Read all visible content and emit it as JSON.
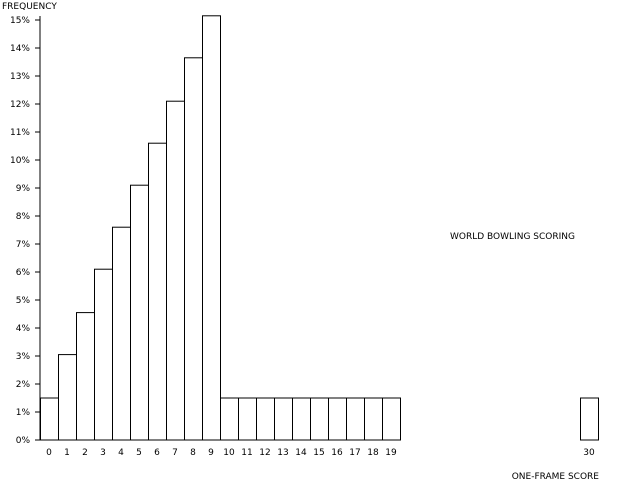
{
  "chart_data": {
    "type": "bar",
    "ylabel": "FREQUENCY",
    "xlabel": "ONE-FRAME SCORE",
    "annotation": "WORLD BOWLING SCORING",
    "ylim": [
      0,
      15
    ],
    "y_ticks": [
      "0%",
      "1%",
      "2%",
      "3%",
      "4%",
      "5%",
      "6%",
      "7%",
      "8%",
      "9%",
      "10%",
      "11%",
      "12%",
      "13%",
      "14%",
      "15%"
    ],
    "x_ticks": [
      "0",
      "1",
      "2",
      "3",
      "4",
      "5",
      "6",
      "7",
      "8",
      "9",
      "10",
      "11",
      "12",
      "13",
      "14",
      "15",
      "16",
      "17",
      "18",
      "19",
      "30"
    ],
    "y_unit": "%",
    "grid": false,
    "categories": [
      0,
      1,
      2,
      3,
      4,
      5,
      6,
      7,
      8,
      9,
      10,
      11,
      12,
      13,
      14,
      15,
      16,
      17,
      18,
      19,
      30
    ],
    "values": [
      1.5,
      3.05,
      4.55,
      6.1,
      7.6,
      9.1,
      10.6,
      12.1,
      13.65,
      15.15,
      1.5,
      1.5,
      1.5,
      1.5,
      1.5,
      1.5,
      1.5,
      1.5,
      1.5,
      1.5,
      1.5
    ],
    "colors": {
      "bar_fill": "#ffffff",
      "bar_stroke": "#000000",
      "axis": "#000000",
      "background": "#ffffff"
    }
  }
}
